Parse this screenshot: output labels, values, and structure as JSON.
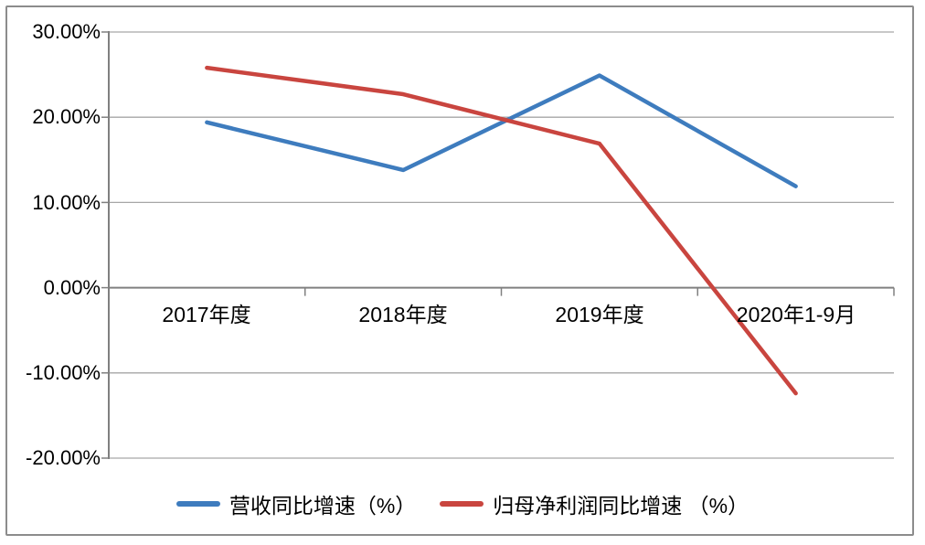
{
  "chart_data": {
    "type": "line",
    "title": "",
    "xlabel": "",
    "ylabel": "",
    "categories": [
      "2017年度",
      "2018年度",
      "2019年度",
      "2020年1-9月"
    ],
    "series": [
      {
        "name": "营收同比增速（%）",
        "color": "#3E7CBE",
        "values": [
          19.4,
          13.8,
          24.9,
          11.9
        ]
      },
      {
        "name": "归母净利润同比增速 （%）",
        "color": "#C9453F",
        "values": [
          25.8,
          22.7,
          16.9,
          -12.4
        ]
      }
    ],
    "ylim": [
      -20,
      30
    ],
    "y_tick_step": 10,
    "y_tick_labels": [
      "30.00%",
      "20.00%",
      "10.00%",
      "0.00%",
      "-10.00%",
      "-20.00%"
    ],
    "grid": "horizontal-only",
    "legend_position": "bottom"
  },
  "colors": {
    "background": "#FFFFFF",
    "border": "#8C8C8C",
    "gridline": "#A6A6A6",
    "axis": "#808080",
    "text": "#000000"
  }
}
